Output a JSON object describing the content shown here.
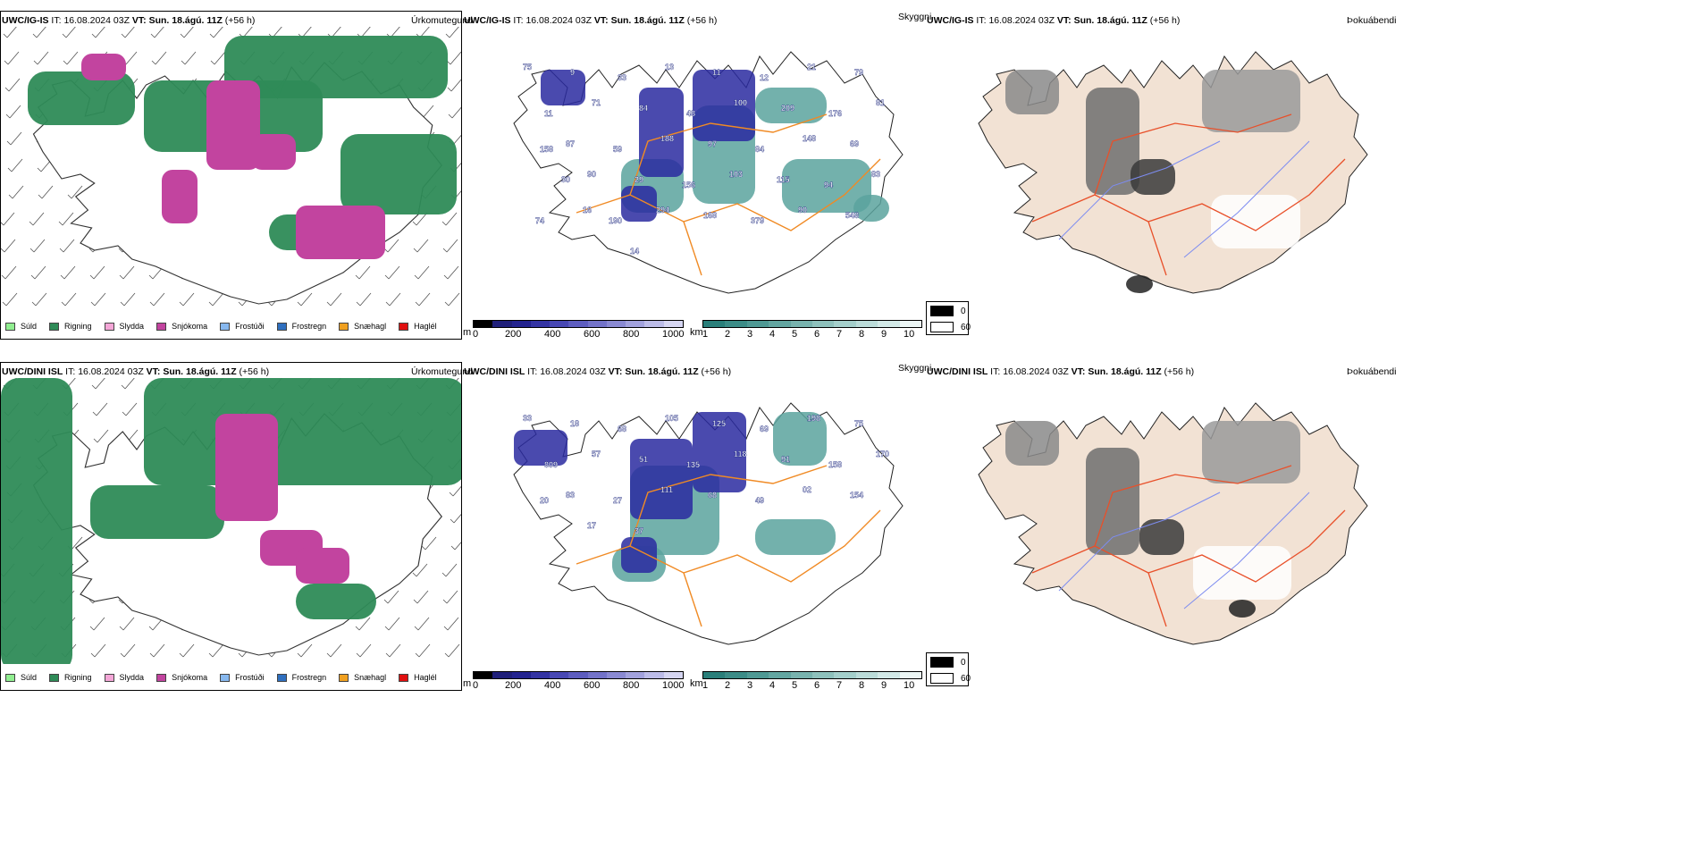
{
  "rows": [
    {
      "model": "UWC/IG-IS",
      "it_label": "IT:",
      "it_value": "16.08.2024 03Z",
      "vt_label": "VT:",
      "vt_value": "Sun. 18.ágú. 11Z",
      "lead": "(+56 h)",
      "panel1_name": "Úrkomutegund",
      "panel2_name": "Skyggni",
      "panel3_name": "Þokuábendi",
      "visibility_labels": [
        "75",
        "9",
        "33",
        "13",
        "11",
        "12",
        "21",
        "79",
        "11",
        "71",
        "84",
        "48",
        "100",
        "209",
        "176",
        "81",
        "87",
        "59",
        "188",
        "97",
        "84",
        "148",
        "69",
        "158",
        "90",
        "29",
        "156",
        "103",
        "115",
        "94",
        "83",
        "30",
        "190",
        "294",
        "168",
        "379",
        "90",
        "548",
        "74",
        "16",
        "14"
      ]
    },
    {
      "model": "UWC/DINI ISL",
      "it_label": "IT:",
      "it_value": "16.08.2024 03Z",
      "vt_label": "VT:",
      "vt_value": "Sun. 18.ágú. 11Z",
      "lead": "(+56 h)",
      "panel1_name": "Úrkomutegund",
      "panel2_name": "Skyggni",
      "panel3_name": "Þokuábendi",
      "visibility_labels": [
        "33",
        "18",
        "68",
        "105",
        "125",
        "69",
        "198",
        "75",
        "809",
        "57",
        "51",
        "135",
        "118",
        "91",
        "158",
        "170",
        "83",
        "27",
        "111",
        "68",
        "49",
        "02",
        "154",
        "20",
        "17",
        "37"
      ]
    }
  ],
  "precip_legend": [
    {
      "label": "Súld",
      "color": "#90ee90"
    },
    {
      "label": "Rigning",
      "color": "#2e8b57"
    },
    {
      "label": "Slydda",
      "color": "#f4a6d7"
    },
    {
      "label": "Snjókoma",
      "color": "#c2449f"
    },
    {
      "label": "Frostúði",
      "color": "#87b8ef"
    },
    {
      "label": "Frostregn",
      "color": "#2f6fbf"
    },
    {
      "label": "Snæhagl",
      "color": "#f0a020"
    },
    {
      "label": "Haglél",
      "color": "#e01010"
    }
  ],
  "height_colorbar": {
    "unit": "m",
    "ticks": [
      "0",
      "200",
      "400",
      "600",
      "800",
      "1000"
    ],
    "colors": [
      "#000000",
      "#1f1f7a",
      "#23238f",
      "#3434a3",
      "#4848b4",
      "#5d5dbf",
      "#7373c9",
      "#8a8ad3",
      "#a2a2dd",
      "#bcbce8",
      "#d6d6f2"
    ]
  },
  "cloud_colorbar": {
    "unit": "km",
    "ticks": [
      "1",
      "2",
      "3",
      "4",
      "5",
      "6",
      "7",
      "8",
      "9",
      "10"
    ],
    "colors": [
      "#2a7f7a",
      "#3c8c87",
      "#4f9994",
      "#63a6a1",
      "#78b3ae",
      "#8ec1bc",
      "#a4cfcb",
      "#bbdcd9",
      "#d2e9e7",
      "#ecf6f5"
    ]
  },
  "fog_legend": [
    {
      "label": "0",
      "color": "#000000"
    },
    {
      "label": "60",
      "color": "#ffffff"
    }
  ]
}
